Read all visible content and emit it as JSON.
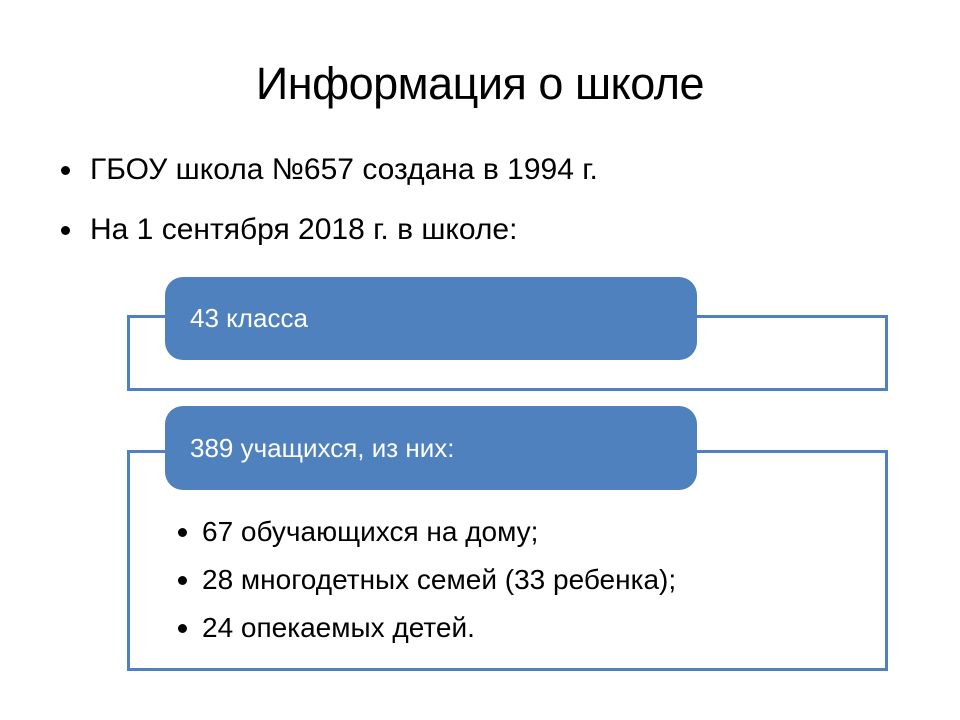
{
  "slide": {
    "title": "Информация о школе",
    "bullets": [
      {
        "text": "ГБОУ школа №657 создана в 1994 г."
      },
      {
        "text": "На 1 сентября 2018 г. в школе:"
      }
    ],
    "diagram": {
      "groups": [
        {
          "header": "43 класса",
          "items": []
        },
        {
          "header": "389 учащихся, из них:",
          "items": [
            "67 обучающихся на дому;",
            "28 многодетных семей (33 ребенка);",
            "24 опекаемых детей."
          ]
        }
      ]
    },
    "colors": {
      "accent_blue": "#4E81BD",
      "box_text": "#FFFFFF",
      "body_text": "#000000",
      "background": "#FFFFFF"
    }
  }
}
